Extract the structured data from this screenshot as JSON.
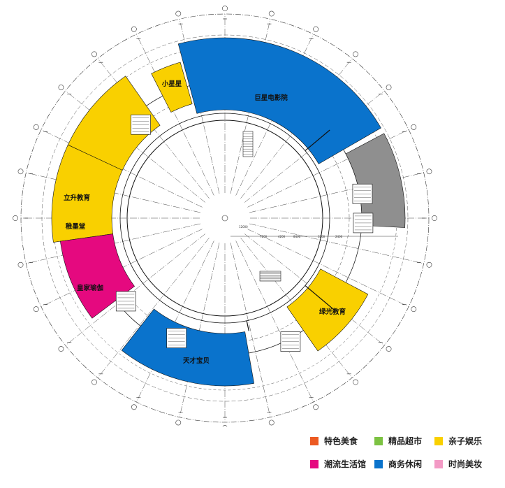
{
  "zones": [
    {
      "id": "cinema",
      "label": "巨星电影院",
      "category": "商务休闲",
      "color": "#0a73cc"
    },
    {
      "id": "xiaoxingxing",
      "label": "小星星",
      "category": "亲子娱乐",
      "color": "#f9d000"
    },
    {
      "id": "lisheng",
      "label": "立升教育",
      "category": "亲子娱乐",
      "color": "#f9d000"
    },
    {
      "id": "zhimotang",
      "label": "稚墨堂",
      "category": "亲子娱乐",
      "color": "#f9d000"
    },
    {
      "id": "yoga",
      "label": "皇家瑜伽",
      "category": "潮流生活馆",
      "color": "#e5097f"
    },
    {
      "id": "tiancai",
      "label": "天才宝贝",
      "category": "商务休闲",
      "color": "#0a73cc"
    },
    {
      "id": "lvguang",
      "label": "绿光教育",
      "category": "亲子娱乐",
      "color": "#f9d000"
    },
    {
      "id": "service",
      "label": "",
      "category": "",
      "color": "#8f8f8f"
    }
  ],
  "legend": [
    {
      "label": "特色美食",
      "color": "#ec5a22"
    },
    {
      "label": "精品超市",
      "color": "#7cc242"
    },
    {
      "label": "亲子娱乐",
      "color": "#f9d000"
    },
    {
      "label": "潮流生活馆",
      "color": "#e5097f"
    },
    {
      "label": "商务休闲",
      "color": "#0a73cc"
    },
    {
      "label": "时尚美妆",
      "color": "#f39ac5"
    }
  ],
  "dimensions": [
    "7200",
    "4200",
    "8400",
    "3200",
    "2400",
    "12000"
  ]
}
